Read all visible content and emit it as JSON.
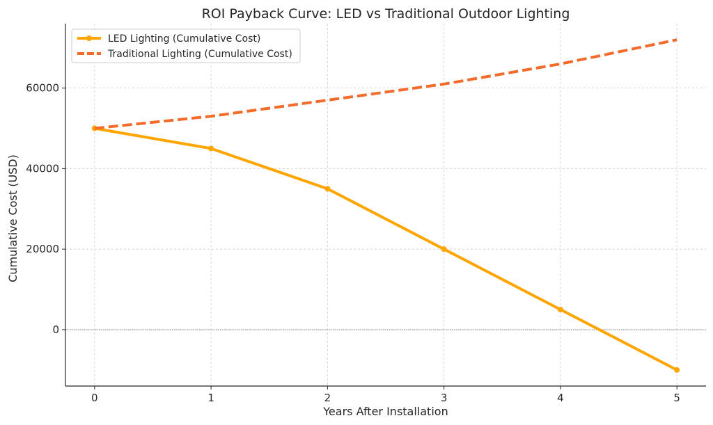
{
  "chart_data": {
    "type": "line",
    "title": "ROI Payback Curve: LED vs Traditional Outdoor Lighting",
    "xlabel": "Years After Installation",
    "ylabel": "Cumulative Cost (USD)",
    "x": [
      0,
      1,
      2,
      3,
      4,
      5
    ],
    "xlim": [
      -0.25,
      5.25
    ],
    "ylim": [
      -14000,
      76000
    ],
    "xticks": [
      0,
      1,
      2,
      3,
      4,
      5
    ],
    "yticks": [
      0,
      20000,
      40000,
      60000
    ],
    "grid": true,
    "legend_position": "top-left",
    "reference_line": {
      "y": 0,
      "style": "dotted",
      "color": "#808080"
    },
    "series": [
      {
        "name": "LED Lighting (Cumulative Cost)",
        "values": [
          50000,
          45000,
          35000,
          20000,
          5000,
          -10000
        ],
        "color": "#FFA500",
        "line_style": "solid",
        "markers": true
      },
      {
        "name": "Traditional Lighting (Cumulative Cost)",
        "values": [
          50000,
          53000,
          57000,
          61000,
          66000,
          72000
        ],
        "color": "#F26B2A",
        "line_style": "dashed",
        "markers": false
      }
    ]
  }
}
